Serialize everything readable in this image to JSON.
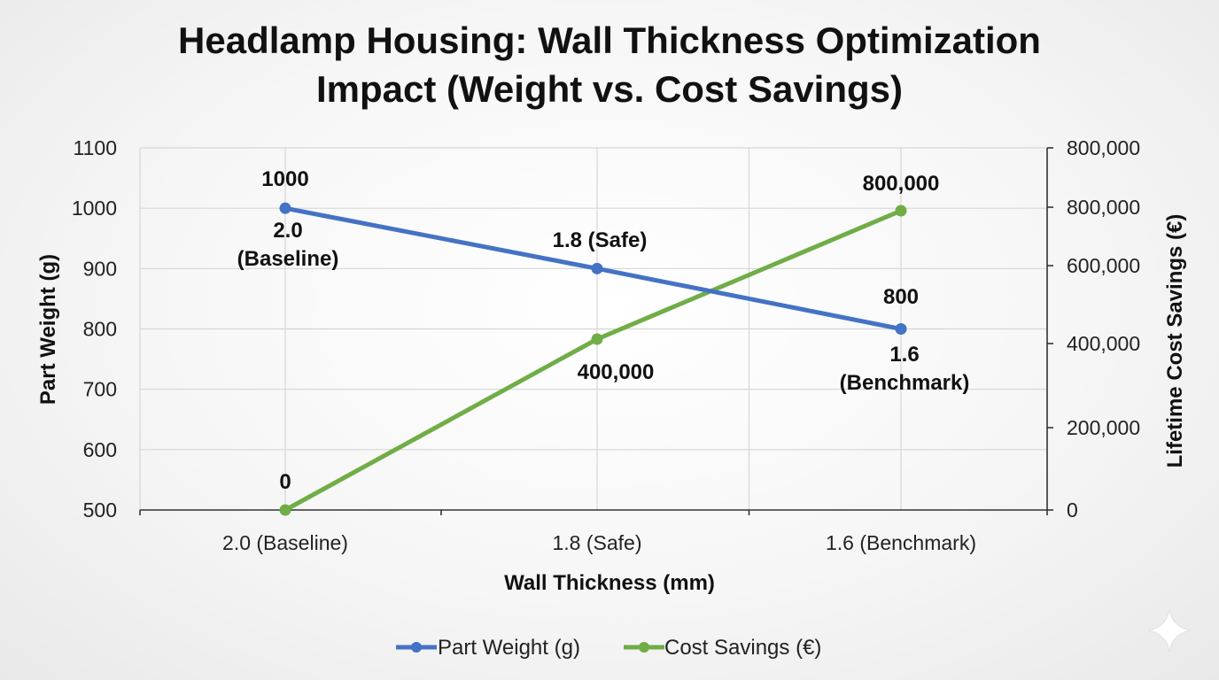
{
  "chart_data": {
    "type": "line",
    "title": "Headlamp Housing: Wall Thickness Optimization Impact (Weight vs. Cost Savings)",
    "title_lines": [
      "Headlamp Housing: Wall Thickness Optimization",
      "Impact (Weight vs. Cost Savings)"
    ],
    "xlabel": "Wall Thickness (mm)",
    "ylabel": "Part Weight (g)",
    "y2label": "Lifetime Cost Savings (€)",
    "categories": [
      "2.0 (Baseline)",
      "1.8 (Safe)",
      "1.6 (Benchmark)"
    ],
    "ylim": [
      500,
      1100
    ],
    "y2lim": [
      0,
      800000
    ],
    "y_ticks": [
      "1100",
      "1000",
      "900",
      "800",
      "700",
      "600",
      "500"
    ],
    "y2_ticks": [
      "800,000",
      "800,000",
      "600,000",
      "400,000",
      "200,000",
      "0"
    ],
    "grid": true,
    "legend_position": "bottom",
    "series": [
      {
        "name": "Part Weight (g)",
        "axis": "left",
        "color": "#4472c4",
        "values": [
          1000,
          900,
          800
        ],
        "labels": [
          [
            "1000",
            "2.0",
            "(Baseline)"
          ],
          [
            "1.8 (Safe)"
          ],
          [
            "800",
            "1.6",
            "(Benchmark)"
          ]
        ]
      },
      {
        "name": "Cost Savings (€)",
        "axis": "right",
        "color": "#70ad47",
        "values": [
          0,
          400000,
          800000
        ],
        "labels": [
          [
            "0"
          ],
          [
            "400,000"
          ],
          [
            "800,000"
          ]
        ]
      }
    ]
  }
}
